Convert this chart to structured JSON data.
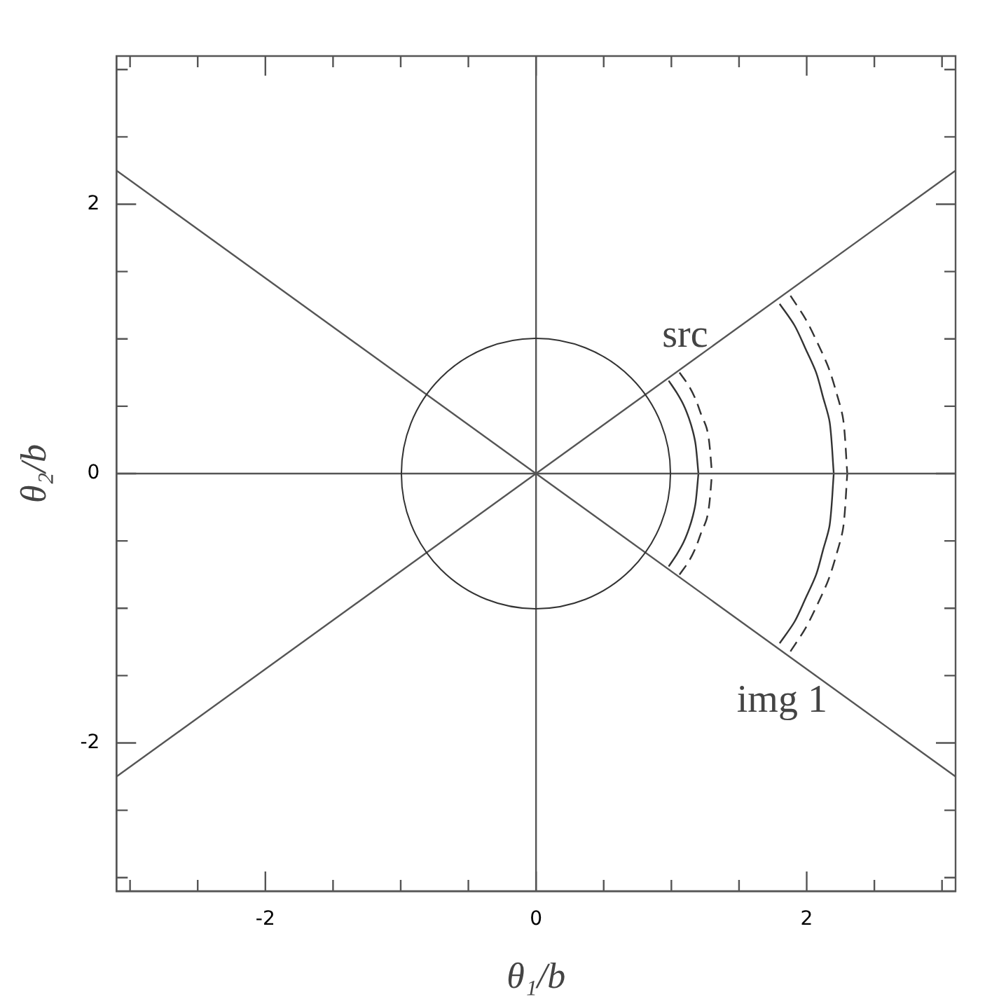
{
  "chart_data": {
    "type": "line",
    "xlabel": "θ₁/b",
    "ylabel": "θ₂/b",
    "xlim": [
      -3.1,
      3.1
    ],
    "ylim": [
      -3.1,
      3.1
    ],
    "xticks": [
      {
        "value": -3,
        "label": null
      },
      {
        "value": -2.5,
        "label": null
      },
      -2,
      {
        "value": -1.5,
        "label": null
      },
      {
        "value": -1,
        "label": null
      },
      {
        "value": -0.5,
        "label": null
      },
      0,
      {
        "value": 0.5,
        "label": null
      },
      {
        "value": 1,
        "label": null
      },
      {
        "value": 1.5,
        "label": null
      },
      2,
      {
        "value": 2.5,
        "label": null
      },
      {
        "value": 3,
        "label": null
      }
    ],
    "yticks": [
      {
        "value": -3,
        "label": null
      },
      {
        "value": -2.5,
        "label": null
      },
      -2,
      {
        "value": -1.5,
        "label": null
      },
      {
        "value": -1,
        "label": null
      },
      {
        "value": -0.5,
        "label": null
      },
      0,
      {
        "value": 0.5,
        "label": null
      },
      {
        "value": 1,
        "label": null
      },
      {
        "value": 1.5,
        "label": null
      },
      2,
      {
        "value": 2.5,
        "label": null
      },
      {
        "value": 3,
        "label": null
      }
    ],
    "marker": "none",
    "series": [
      {
        "color": "#555555",
        "x": [
          -3.1,
          3.1
        ],
        "values": [
          0,
          0
        ]
      },
      {
        "color": "#555555",
        "x": [
          0,
          0
        ],
        "values": [
          -3.1,
          3.1
        ]
      },
      {
        "color": "#555555",
        "x": [
          -3.1,
          3.1
        ],
        "values": [
          2.25,
          -2.25
        ]
      },
      {
        "color": "#555555",
        "x": [
          -3.1,
          3.1
        ],
        "values": [
          -2.25,
          2.25
        ]
      },
      {
        "color": "#333333",
        "line_style": "solid",
        "x": [
          0.98,
          1.04,
          1.09,
          1.13,
          1.16,
          1.18,
          1.2
        ],
        "values": [
          0.69,
          0.6,
          0.51,
          0.41,
          0.31,
          0.21,
          0
        ]
      },
      {
        "color": "#333333",
        "line_style": "solid",
        "x": [
          0.98,
          1.04,
          1.09,
          1.13,
          1.16,
          1.18,
          1.2
        ],
        "values": [
          -0.69,
          -0.6,
          -0.51,
          -0.41,
          -0.31,
          -0.21,
          0
        ]
      },
      {
        "color": "#333333",
        "line_style": "dashed",
        "x": [
          1.06,
          1.13,
          1.18,
          1.22,
          1.26,
          1.28,
          1.3
        ],
        "values": [
          0.75,
          0.65,
          0.55,
          0.44,
          0.34,
          0.23,
          0
        ]
      },
      {
        "color": "#333333",
        "line_style": "dashed",
        "x": [
          1.06,
          1.13,
          1.18,
          1.22,
          1.26,
          1.28,
          1.3
        ],
        "values": [
          -0.75,
          -0.65,
          -0.55,
          -0.44,
          -0.34,
          -0.23,
          0
        ]
      },
      {
        "color": "#333333",
        "line_style": "solid",
        "x": [
          1.8,
          1.91,
          1.99,
          2.07,
          2.12,
          2.17,
          2.2
        ],
        "values": [
          1.26,
          1.1,
          0.93,
          0.75,
          0.57,
          0.38,
          0
        ]
      },
      {
        "color": "#333333",
        "line_style": "solid",
        "x": [
          1.8,
          1.91,
          1.99,
          2.07,
          2.12,
          2.17,
          2.2
        ],
        "values": [
          -1.26,
          -1.1,
          -0.93,
          -0.75,
          -0.57,
          -0.38,
          0
        ]
      },
      {
        "color": "#333333",
        "line_style": "dashed",
        "x": [
          1.88,
          1.99,
          2.08,
          2.16,
          2.22,
          2.27,
          2.3
        ],
        "values": [
          1.32,
          1.15,
          0.97,
          0.79,
          0.6,
          0.4,
          0
        ]
      },
      {
        "color": "#333333",
        "line_style": "dashed",
        "x": [
          1.88,
          1.99,
          2.08,
          2.16,
          2.22,
          2.27,
          2.3
        ],
        "values": [
          -1.32,
          -1.15,
          -0.97,
          -0.79,
          -0.6,
          -0.4,
          0
        ]
      }
    ],
    "annotations": [
      {
        "text": "src",
        "x": 1.06,
        "y": 0.75
      },
      {
        "text": "img 1",
        "x": 1.88,
        "y": -1.32
      }
    ]
  }
}
